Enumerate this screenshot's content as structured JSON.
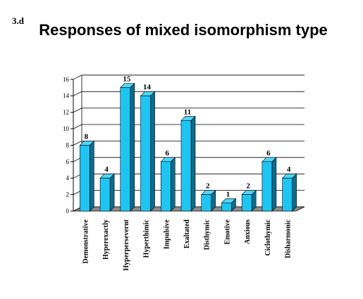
{
  "figure_label": "3.d",
  "chart_data": {
    "type": "bar",
    "title": "Responses of mixed isomorphism type",
    "xlabel": "",
    "ylabel": "",
    "categories": [
      "Demonstrative",
      "Hyperexactly",
      "Hyperpersevernt",
      "Hyperthimic",
      "Impulsive",
      "Exaltated",
      "Disthymic",
      "Emotive",
      "Anxious",
      "Ciclothymic",
      "Disharmonic"
    ],
    "values": [
      8,
      4,
      15,
      14,
      6,
      11,
      2,
      1,
      2,
      6,
      4
    ],
    "data_labels": [
      "8",
      "4",
      "15",
      "14",
      "6",
      "11",
      "2",
      "1",
      "2",
      "6",
      "4"
    ],
    "ylim": [
      0,
      16
    ],
    "yticks": [
      "0",
      "2",
      "4",
      "6",
      "8",
      "10",
      "12",
      "14",
      "16"
    ],
    "grid": "horizontal",
    "legend": "none",
    "bar_style": "3d",
    "colors": {
      "bar_front": "#1FC5F2",
      "bar_side": "#0E6C8C",
      "bar_top": "#4FD6F8",
      "wall": "#FFFFFF",
      "floor": "#8C8C8C",
      "grid": "#000000"
    }
  }
}
